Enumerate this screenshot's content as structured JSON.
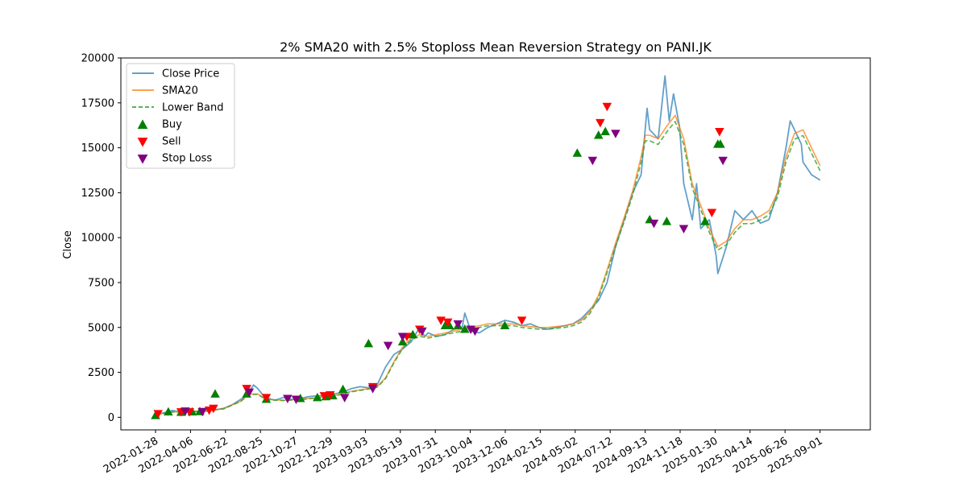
{
  "chart_data": {
    "type": "line",
    "title": "2% SMA20 with 2.5% Stoploss Mean Reversion Strategy on PANI.JK",
    "xlabel": "",
    "ylabel": "Close",
    "ylim": [
      -700,
      20000
    ],
    "y_ticks": [
      0,
      2500,
      5000,
      7500,
      10000,
      12500,
      15000,
      17500,
      20000
    ],
    "x_tick_labels": [
      "2022-01-28",
      "2022-04-06",
      "2022-06-22",
      "2022-08-25",
      "2022-10-27",
      "2022-12-29",
      "2023-03-03",
      "2023-05-19",
      "2023-07-31",
      "2023-10-04",
      "2023-12-06",
      "2024-02-15",
      "2024-05-02",
      "2024-07-12",
      "2024-09-13",
      "2024-11-18",
      "2025-01-30",
      "2025-04-14",
      "2025-06-26",
      "2025-09-01"
    ],
    "grid": false,
    "legend_position": "upper left",
    "colors": {
      "close": "#1f77b4",
      "sma": "#ff7f0e",
      "lower": "#2ca02c",
      "buy": "#008000",
      "sell": "#ff0000",
      "stop": "#800080"
    },
    "series": [
      {
        "name": "Close Price",
        "key": "close",
        "values": [
          [
            0,
            150
          ],
          [
            1,
            250
          ],
          [
            2,
            380
          ],
          [
            3,
            300
          ],
          [
            4,
            320
          ],
          [
            5,
            310
          ],
          [
            6,
            350
          ],
          [
            7,
            420
          ],
          [
            8,
            500
          ],
          [
            9,
            700
          ],
          [
            10,
            1000
          ],
          [
            10.8,
            1250
          ],
          [
            11.5,
            1800
          ],
          [
            12,
            1600
          ],
          [
            12.5,
            1300
          ],
          [
            13,
            1100
          ],
          [
            14,
            950
          ],
          [
            15,
            1100
          ],
          [
            16,
            1000
          ],
          [
            17,
            1050
          ],
          [
            18,
            1150
          ],
          [
            19,
            1200
          ],
          [
            20,
            1200
          ],
          [
            21,
            1300
          ],
          [
            22,
            1400
          ],
          [
            23,
            1600
          ],
          [
            24,
            1700
          ],
          [
            25,
            1650
          ],
          [
            26,
            1800
          ],
          [
            27,
            2800
          ],
          [
            28,
            3500
          ],
          [
            29,
            3800
          ],
          [
            30,
            4200
          ],
          [
            31,
            5000
          ],
          [
            31.6,
            4500
          ],
          [
            32,
            4700
          ],
          [
            33,
            4500
          ],
          [
            34,
            4600
          ],
          [
            35,
            4900
          ],
          [
            36,
            5000
          ],
          [
            36.3,
            5800
          ],
          [
            37,
            4800
          ],
          [
            38,
            4700
          ],
          [
            39,
            5000
          ],
          [
            40,
            5200
          ],
          [
            41,
            5400
          ],
          [
            42,
            5300
          ],
          [
            43,
            5100
          ],
          [
            44,
            5200
          ],
          [
            45,
            5000
          ],
          [
            46,
            4900
          ],
          [
            47,
            5000
          ],
          [
            48,
            5100
          ],
          [
            49,
            5200
          ],
          [
            50,
            5500
          ],
          [
            51,
            6000
          ],
          [
            52,
            6500
          ],
          [
            53,
            7500
          ],
          [
            54,
            9500
          ],
          [
            55,
            11000
          ],
          [
            56,
            12500
          ],
          [
            57,
            13500
          ],
          [
            57.7,
            17200
          ],
          [
            58,
            16000
          ],
          [
            59,
            15500
          ],
          [
            59.8,
            19000
          ],
          [
            60.3,
            16500
          ],
          [
            60.8,
            18000
          ],
          [
            61.5,
            16200
          ],
          [
            62,
            13000
          ],
          [
            63,
            11000
          ],
          [
            63.5,
            13000
          ],
          [
            64,
            10500
          ],
          [
            65,
            11000
          ],
          [
            65.8,
            9000
          ],
          [
            66,
            8000
          ],
          [
            67,
            9500
          ],
          [
            68,
            11500
          ],
          [
            69,
            11000
          ],
          [
            70,
            11500
          ],
          [
            71,
            10800
          ],
          [
            72,
            11000
          ],
          [
            73,
            12500
          ],
          [
            74,
            15000
          ],
          [
            74.5,
            16500
          ],
          [
            75,
            16000
          ],
          [
            75.8,
            15200
          ],
          [
            76,
            14200
          ],
          [
            77,
            13500
          ],
          [
            78,
            13200
          ]
        ]
      },
      {
        "name": "SMA20",
        "key": "sma",
        "values": [
          [
            0,
            150
          ],
          [
            2,
            300
          ],
          [
            4,
            320
          ],
          [
            6,
            360
          ],
          [
            8,
            480
          ],
          [
            10,
            900
          ],
          [
            11,
            1300
          ],
          [
            12,
            1300
          ],
          [
            13,
            1000
          ],
          [
            15,
            950
          ],
          [
            17,
            1000
          ],
          [
            19,
            1100
          ],
          [
            21,
            1200
          ],
          [
            23,
            1450
          ],
          [
            25,
            1600
          ],
          [
            26,
            1700
          ],
          [
            27,
            2200
          ],
          [
            28,
            3100
          ],
          [
            29,
            3900
          ],
          [
            30,
            4400
          ],
          [
            31,
            4600
          ],
          [
            32,
            4500
          ],
          [
            33,
            4600
          ],
          [
            34,
            4700
          ],
          [
            35,
            4800
          ],
          [
            36,
            4900
          ],
          [
            37,
            5000
          ],
          [
            38,
            5100
          ],
          [
            39,
            5200
          ],
          [
            40,
            5200
          ],
          [
            41,
            5200
          ],
          [
            42,
            5200
          ],
          [
            43,
            5100
          ],
          [
            44,
            5050
          ],
          [
            45,
            5000
          ],
          [
            46,
            5000
          ],
          [
            47,
            5050
          ],
          [
            48,
            5100
          ],
          [
            49,
            5200
          ],
          [
            50,
            5400
          ],
          [
            51,
            5900
          ],
          [
            52,
            6800
          ],
          [
            53,
            8200
          ],
          [
            54,
            9700
          ],
          [
            55,
            11100
          ],
          [
            56,
            12600
          ],
          [
            57,
            14500
          ],
          [
            57.5,
            15700
          ],
          [
            58,
            15700
          ],
          [
            59,
            15500
          ],
          [
            60,
            16200
          ],
          [
            61,
            16800
          ],
          [
            62,
            15500
          ],
          [
            63,
            13000
          ],
          [
            64,
            11800
          ],
          [
            65,
            10500
          ],
          [
            66,
            9500
          ],
          [
            67,
            9800
          ],
          [
            68,
            10500
          ],
          [
            69,
            11000
          ],
          [
            70,
            11000
          ],
          [
            71,
            11200
          ],
          [
            72,
            11500
          ],
          [
            73,
            12500
          ],
          [
            74,
            14500
          ],
          [
            75,
            15800
          ],
          [
            76,
            16000
          ],
          [
            77,
            15000
          ],
          [
            78,
            14000
          ]
        ]
      },
      {
        "name": "Lower Band",
        "key": "lower",
        "values": [
          [
            0,
            150
          ],
          [
            2,
            295
          ],
          [
            4,
            315
          ],
          [
            6,
            355
          ],
          [
            8,
            470
          ],
          [
            10,
            880
          ],
          [
            11,
            1270
          ],
          [
            12,
            1270
          ],
          [
            13,
            980
          ],
          [
            15,
            930
          ],
          [
            17,
            980
          ],
          [
            19,
            1080
          ],
          [
            21,
            1180
          ],
          [
            23,
            1420
          ],
          [
            25,
            1570
          ],
          [
            26,
            1670
          ],
          [
            27,
            2150
          ],
          [
            28,
            3040
          ],
          [
            29,
            3820
          ],
          [
            30,
            4310
          ],
          [
            31,
            4510
          ],
          [
            32,
            4410
          ],
          [
            33,
            4510
          ],
          [
            34,
            4610
          ],
          [
            35,
            4700
          ],
          [
            36,
            4800
          ],
          [
            37,
            4900
          ],
          [
            38,
            5000
          ],
          [
            39,
            5100
          ],
          [
            40,
            5100
          ],
          [
            41,
            5100
          ],
          [
            42,
            5100
          ],
          [
            43,
            5000
          ],
          [
            44,
            4950
          ],
          [
            45,
            4900
          ],
          [
            46,
            4900
          ],
          [
            47,
            4950
          ],
          [
            48,
            5000
          ],
          [
            49,
            5100
          ],
          [
            50,
            5300
          ],
          [
            51,
            5780
          ],
          [
            52,
            6660
          ],
          [
            53,
            8040
          ],
          [
            54,
            9510
          ],
          [
            55,
            10880
          ],
          [
            56,
            12350
          ],
          [
            57,
            14210
          ],
          [
            57.5,
            15390
          ],
          [
            58,
            15390
          ],
          [
            59,
            15190
          ],
          [
            60,
            15880
          ],
          [
            61,
            16460
          ],
          [
            62,
            15190
          ],
          [
            63,
            12740
          ],
          [
            64,
            11560
          ],
          [
            65,
            10290
          ],
          [
            66,
            9310
          ],
          [
            67,
            9600
          ],
          [
            68,
            10290
          ],
          [
            69,
            10780
          ],
          [
            70,
            10780
          ],
          [
            71,
            10980
          ],
          [
            72,
            11270
          ],
          [
            73,
            12250
          ],
          [
            74,
            14210
          ],
          [
            75,
            15480
          ],
          [
            76,
            15680
          ],
          [
            77,
            14700
          ],
          [
            78,
            13720
          ]
        ]
      }
    ],
    "markers": [
      {
        "name": "Buy",
        "key": "buy",
        "shape": "up",
        "points": [
          [
            0,
            100
          ],
          [
            1.5,
            300
          ],
          [
            3,
            280
          ],
          [
            4.3,
            300
          ],
          [
            5.2,
            320
          ],
          [
            7,
            1300
          ],
          [
            10.7,
            1300
          ],
          [
            13,
            1000
          ],
          [
            17,
            1050
          ],
          [
            19,
            1100
          ],
          [
            20,
            1150
          ],
          [
            20.8,
            1200
          ],
          [
            22,
            1550
          ],
          [
            25,
            4100
          ],
          [
            29,
            4200
          ],
          [
            30.2,
            4600
          ],
          [
            34,
            5100
          ],
          [
            34.5,
            5100
          ],
          [
            35.5,
            5100
          ],
          [
            36.3,
            4900
          ],
          [
            41,
            5100
          ],
          [
            49.5,
            14700
          ],
          [
            52,
            15700
          ],
          [
            52.8,
            15900
          ],
          [
            58,
            11000
          ],
          [
            60,
            10900
          ],
          [
            64.5,
            10900
          ],
          [
            66,
            15200
          ],
          [
            66.3,
            15200
          ]
        ]
      },
      {
        "name": "Sell",
        "key": "sell",
        "shape": "down",
        "points": [
          [
            0.3,
            200
          ],
          [
            3,
            300
          ],
          [
            4,
            300
          ],
          [
            6.3,
            400
          ],
          [
            6.8,
            500
          ],
          [
            10.7,
            1600
          ],
          [
            13,
            1100
          ],
          [
            19.8,
            1200
          ],
          [
            20.5,
            1250
          ],
          [
            25.5,
            1700
          ],
          [
            29.5,
            4500
          ],
          [
            31,
            4900
          ],
          [
            33.5,
            5400
          ],
          [
            34.3,
            5300
          ],
          [
            43,
            5400
          ],
          [
            52.2,
            16400
          ],
          [
            53,
            17300
          ],
          [
            65.3,
            11400
          ],
          [
            66.2,
            15900
          ]
        ]
      },
      {
        "name": "Stop Loss",
        "key": "stop",
        "shape": "down",
        "points": [
          [
            3.5,
            350
          ],
          [
            5.5,
            320
          ],
          [
            11,
            1400
          ],
          [
            15.5,
            1050
          ],
          [
            16.5,
            1000
          ],
          [
            22.2,
            1100
          ],
          [
            25.5,
            1600
          ],
          [
            27.3,
            4000
          ],
          [
            29,
            4500
          ],
          [
            31.3,
            4800
          ],
          [
            35.5,
            5200
          ],
          [
            37,
            4900
          ],
          [
            37.5,
            4800
          ],
          [
            51.3,
            14300
          ],
          [
            54,
            15800
          ],
          [
            58.5,
            10800
          ],
          [
            62,
            10500
          ],
          [
            66.6,
            14300
          ]
        ]
      }
    ]
  }
}
